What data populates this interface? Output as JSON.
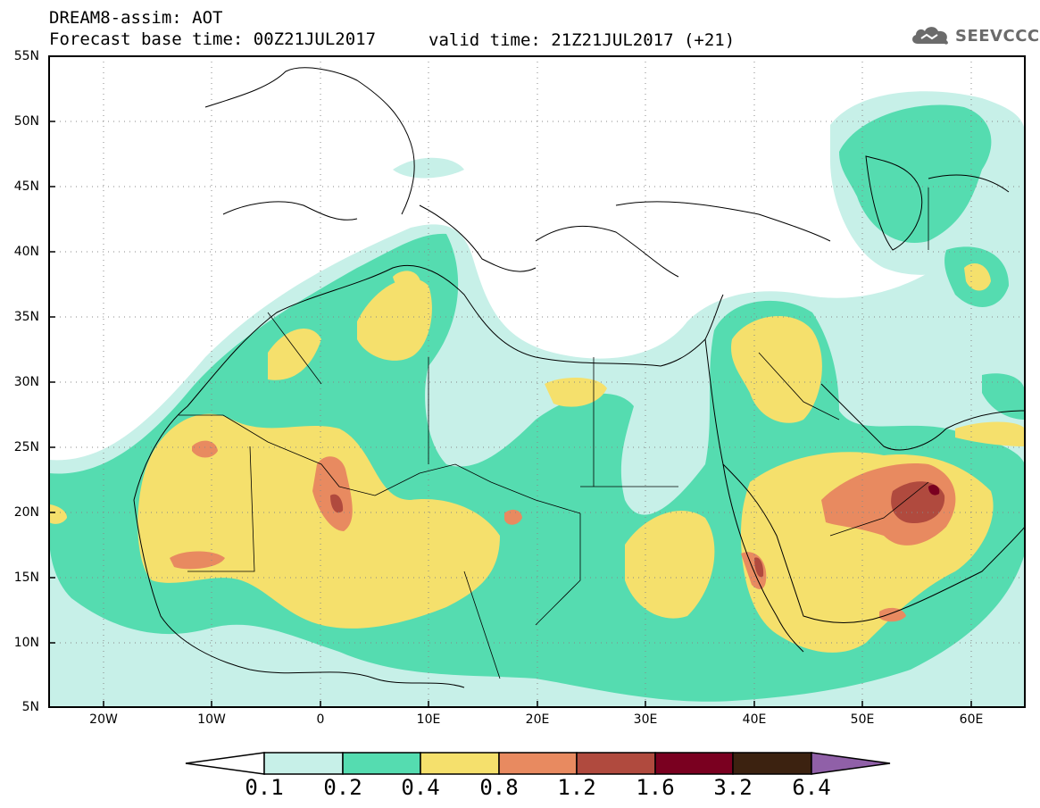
{
  "header": {
    "line1": "DREAM8-assim: AOT",
    "line2": "Forecast base time: 00Z21JUL2017",
    "valid": "valid time: 21Z21JUL2017 (+21)"
  },
  "logo": {
    "text": "SEEVCCC",
    "icon": "cloud-icon"
  },
  "map": {
    "lat_labels": [
      "55N",
      "50N",
      "45N",
      "40N",
      "35N",
      "30N",
      "25N",
      "20N",
      "15N",
      "10N",
      "5N"
    ],
    "lon_labels": [
      "20W",
      "10W",
      "0",
      "10E",
      "20E",
      "30E",
      "40E",
      "50E",
      "60E"
    ],
    "lat_range": [
      5,
      55
    ],
    "lon_range": [
      -25,
      65
    ],
    "grid": "dotted"
  },
  "colorbar": {
    "labels": [
      "0.1",
      "0.2",
      "0.4",
      "0.8",
      "1.2",
      "1.6",
      "3.2",
      "6.4"
    ],
    "colors": [
      "#ffffff",
      "#c7f0e8",
      "#55dcb0",
      "#f5e06c",
      "#e88a60",
      "#b04a3e",
      "#7a0020",
      "#3c2210",
      "#9060a8"
    ]
  }
}
